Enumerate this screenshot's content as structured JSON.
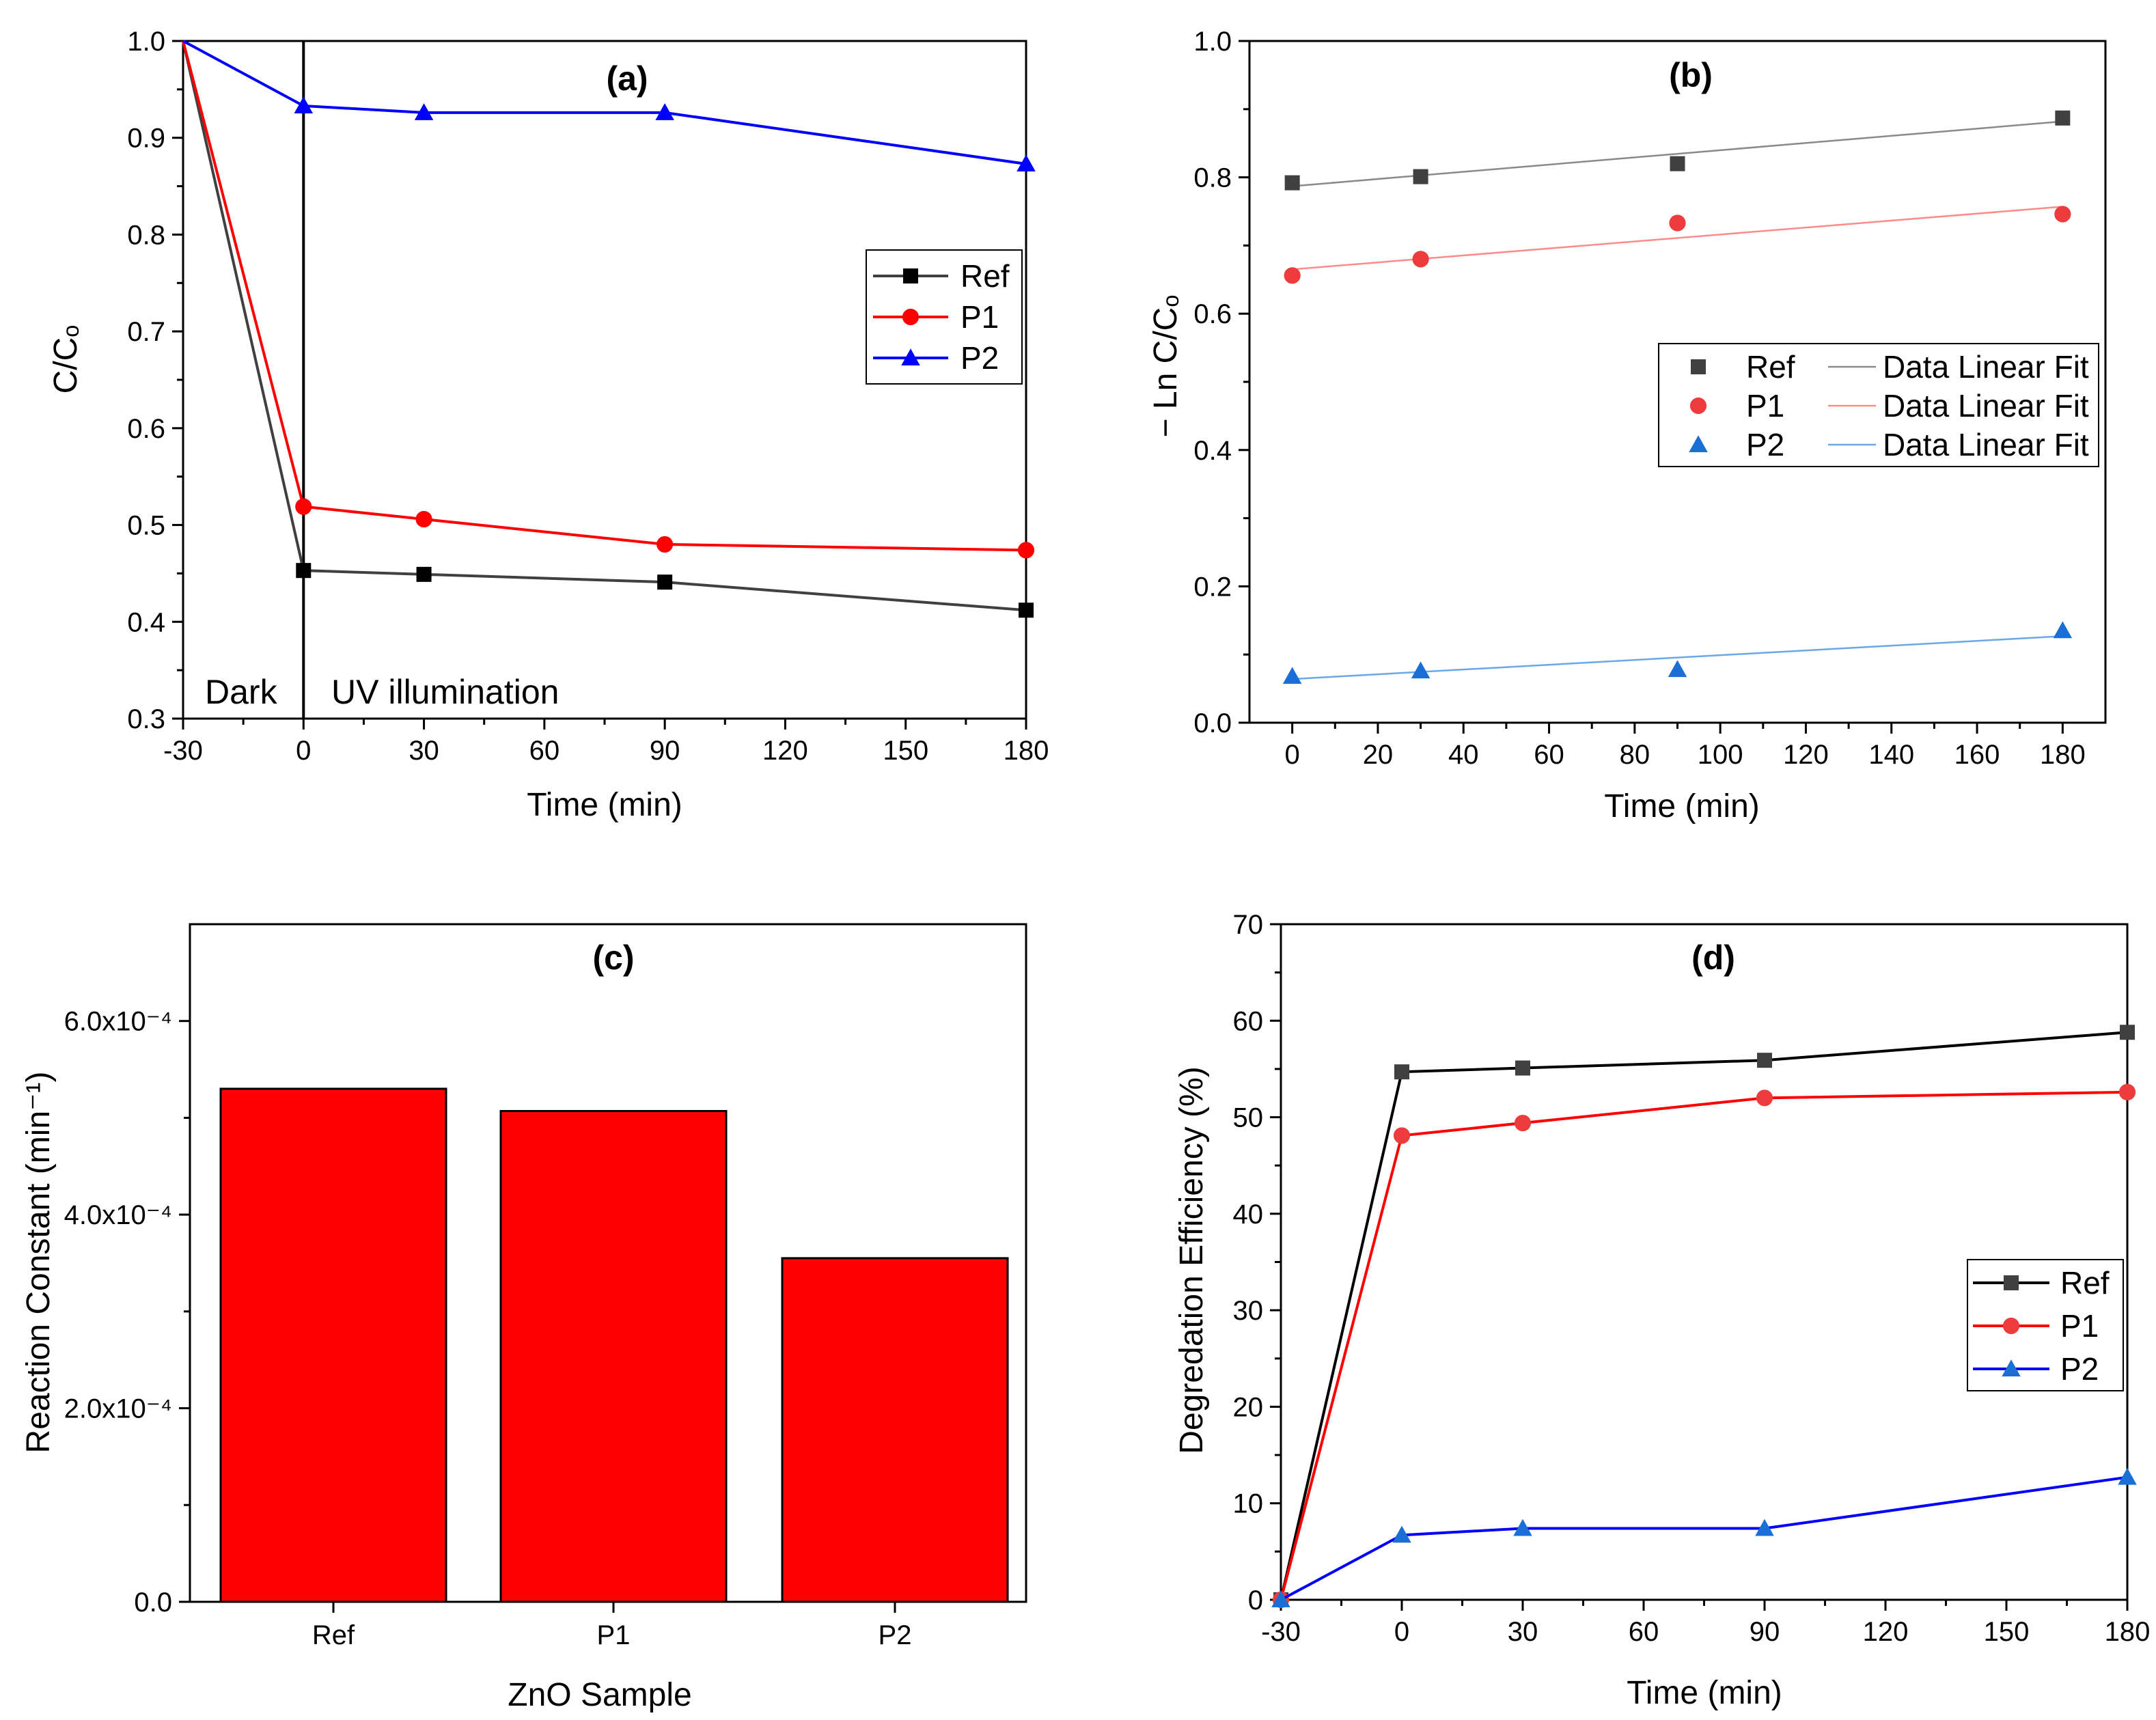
{
  "colors": {
    "Ref": "#000000",
    "P1": "#ff0000",
    "P2": "#0000ff",
    "axis": "#000000"
  },
  "chart_data": [
    {
      "panel": "(a)",
      "type": "line",
      "xlabel": "Time (min)",
      "ylabel": "C/Cₒ",
      "xlim": [
        -30,
        180
      ],
      "ylim": [
        0.3,
        1.0
      ],
      "xticks": [
        -30,
        0,
        30,
        60,
        90,
        120,
        150,
        180
      ],
      "yticks": [
        0.3,
        0.4,
        0.5,
        0.6,
        0.7,
        0.8,
        0.9,
        1.0
      ],
      "x": [
        -30,
        0,
        30,
        90,
        180
      ],
      "series": [
        {
          "name": "Ref",
          "marker": "square",
          "color": "#000000",
          "line_color": "#404040",
          "values": [
            1.0,
            0.453,
            0.449,
            0.441,
            0.412
          ]
        },
        {
          "name": "P1",
          "marker": "circle",
          "color": "#ff0000",
          "line_color": "#ff0000",
          "values": [
            1.0,
            0.519,
            0.506,
            0.48,
            0.474
          ]
        },
        {
          "name": "P2",
          "marker": "triangle",
          "color": "#0000ff",
          "line_color": "#0000ff",
          "values": [
            1.0,
            0.933,
            0.926,
            0.926,
            0.873
          ]
        }
      ],
      "annotations": [
        "Dark",
        "UV illumination"
      ],
      "divider_x": 0,
      "legend": "right-middle"
    },
    {
      "panel": "(b)",
      "type": "scatter",
      "xlabel": "Time (min)",
      "ylabel": "− Ln C/Cₒ",
      "xlim": [
        -10,
        190
      ],
      "ylim": [
        0.0,
        1.0
      ],
      "xticks": [
        0,
        20,
        40,
        60,
        80,
        100,
        120,
        140,
        160,
        180
      ],
      "yticks": [
        0.0,
        0.2,
        0.4,
        0.6,
        0.8,
        1.0
      ],
      "x": [
        0,
        30,
        90,
        180
      ],
      "series": [
        {
          "name": "Ref",
          "fit_label": "Data Linear Fit",
          "marker": "square",
          "color": "#404040",
          "fit_color": "#8a8a8a",
          "values": [
            0.792,
            0.801,
            0.82,
            0.887
          ],
          "fit": [
            0.787,
            0.882
          ]
        },
        {
          "name": "P1",
          "fit_label": "Data Linear Fit",
          "marker": "circle",
          "color": "#ee3b3b",
          "fit_color": "#ff8a8a",
          "values": [
            0.656,
            0.68,
            0.733,
            0.746
          ],
          "fit": [
            0.665,
            0.757
          ]
        },
        {
          "name": "P2",
          "fit_label": "Data Linear Fit",
          "marker": "triangle",
          "color": "#1a6fd6",
          "fit_color": "#6aa8e8",
          "values": [
            0.068,
            0.076,
            0.078,
            0.135
          ],
          "fit": [
            0.064,
            0.127
          ]
        }
      ],
      "legend": "right-middle"
    },
    {
      "panel": "(c)",
      "type": "bar",
      "xlabel": "ZnO Sample",
      "ylabel": "Reaction Constant (min⁻¹)",
      "ylim": [
        0.0,
        0.0007
      ],
      "yticks": [
        0.0,
        0.0002,
        0.0004,
        0.0006
      ],
      "ytick_labels": [
        "0.0",
        "2.0x10⁻⁴",
        "4.0x10⁻⁴",
        "6.0x10⁻⁴"
      ],
      "categories": [
        "Ref",
        "P1",
        "P2"
      ],
      "values": [
        0.00053,
        0.000507,
        0.000355
      ],
      "bar_color": "#ff0000"
    },
    {
      "panel": "(d)",
      "type": "line",
      "xlabel": "Time (min)",
      "ylabel": "Degredation Efficiency (%)",
      "xlim": [
        -30,
        180
      ],
      "ylim": [
        0,
        70
      ],
      "xticks": [
        -30,
        0,
        30,
        60,
        90,
        120,
        150,
        180
      ],
      "yticks": [
        0,
        10,
        20,
        30,
        40,
        50,
        60,
        70
      ],
      "x": [
        -30,
        0,
        30,
        90,
        180
      ],
      "series": [
        {
          "name": "Ref",
          "marker": "square",
          "color": "#404040",
          "line_color": "#000000",
          "values": [
            0,
            54.7,
            55.1,
            55.9,
            58.8
          ]
        },
        {
          "name": "P1",
          "marker": "circle",
          "color": "#ee3b3b",
          "line_color": "#ff0000",
          "values": [
            0,
            48.1,
            49.4,
            52.0,
            52.6
          ]
        },
        {
          "name": "P2",
          "marker": "triangle",
          "color": "#1a6fd6",
          "line_color": "#0000ff",
          "values": [
            0,
            6.7,
            7.4,
            7.4,
            12.7
          ]
        }
      ],
      "legend": "right-middle"
    }
  ]
}
